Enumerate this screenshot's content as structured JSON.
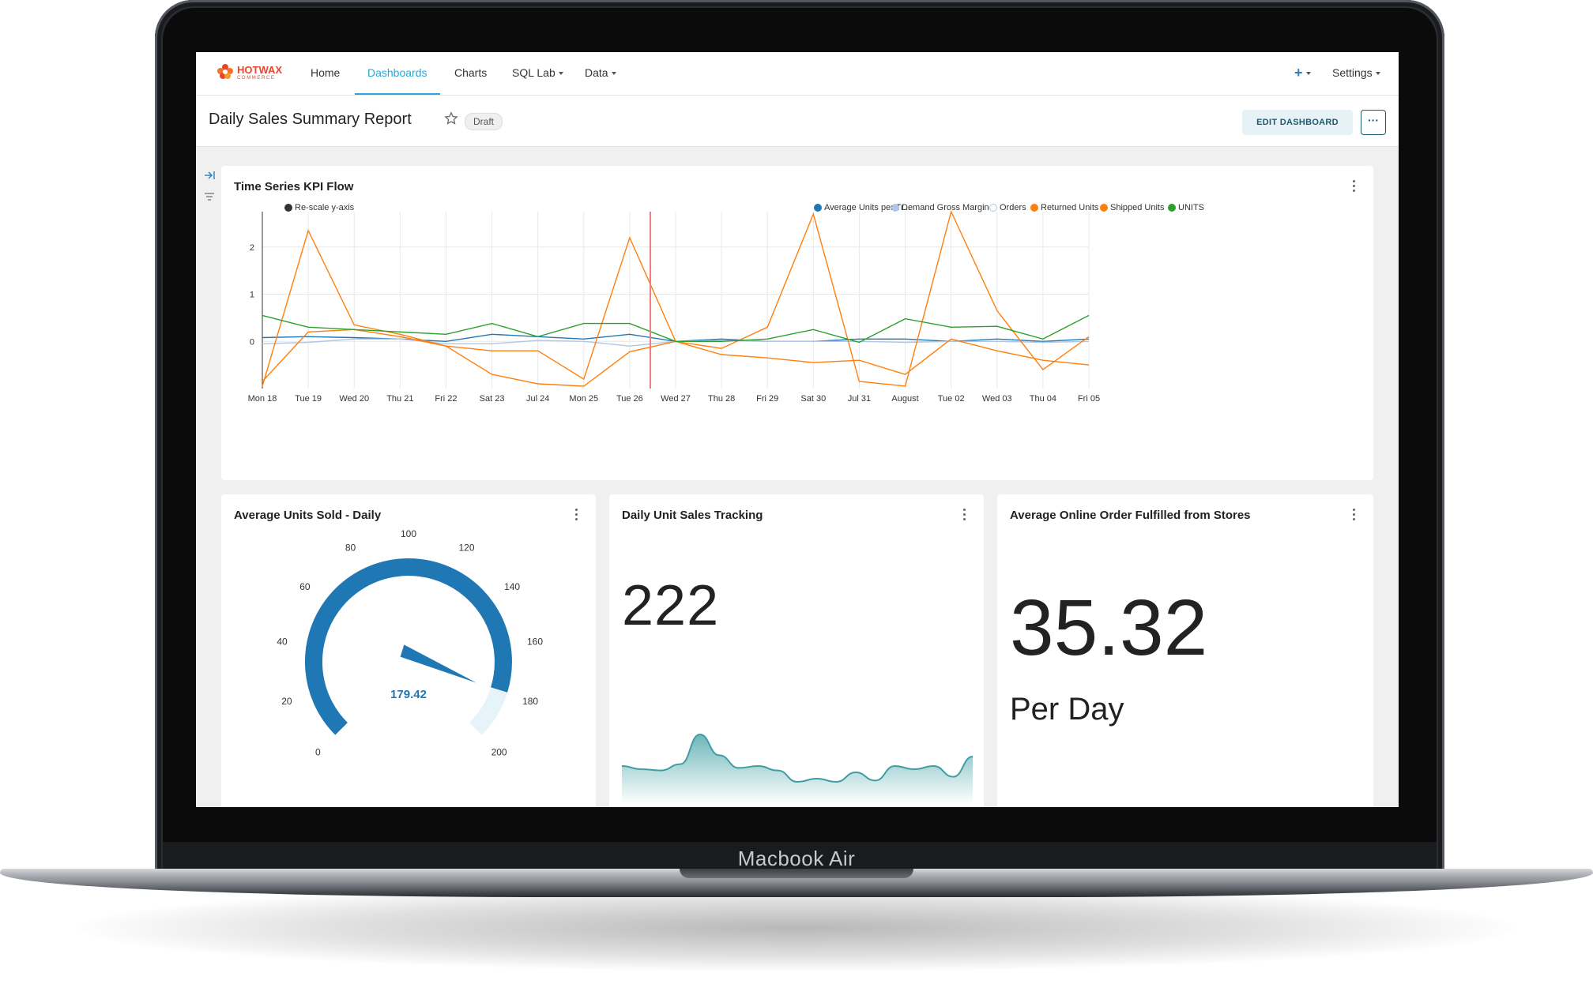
{
  "device": {
    "label": "Macbook Air"
  },
  "app": {
    "logo_text": "HOTWAX",
    "logo_sub": "COMMERCE",
    "nav": [
      {
        "label": "Home"
      },
      {
        "label": "Dashboards"
      },
      {
        "label": "Charts"
      },
      {
        "label": "SQL Lab"
      },
      {
        "label": "Data"
      }
    ],
    "right_nav": {
      "plus": "+",
      "settings": "Settings"
    }
  },
  "dashboard": {
    "title": "Daily Sales Summary Report",
    "status": "Draft",
    "edit_label": "EDIT DASHBOARD",
    "more_label": "···"
  },
  "cards": {
    "timeseries": {
      "title": "Time Series KPI Flow"
    },
    "gauge": {
      "title": "Average Units Sold - Daily"
    },
    "tracking": {
      "title": "Daily Unit Sales Tracking",
      "value": "222"
    },
    "online": {
      "title": "Average Online Order Fulfilled from Stores",
      "value": "35.32",
      "unit": "Per Day"
    }
  },
  "chart_data": [
    {
      "type": "line",
      "title": "Time Series KPI Flow",
      "rescale_label": "Re-scale y-axis",
      "categories": [
        "Mon 18",
        "Tue 19",
        "Wed 20",
        "Thu 21",
        "Fri 22",
        "Sat 23",
        "Jul 24",
        "Mon 25",
        "Tue 26",
        "Wed 27",
        "Thu 28",
        "Fri 29",
        "Sat 30",
        "Jul 31",
        "August",
        "Tue 02",
        "Wed 03",
        "Thu 04",
        "Fri 05"
      ],
      "yticks": [
        "0",
        "1",
        "2"
      ],
      "ylim": [
        -1,
        2.75
      ],
      "marker_index": 8.45,
      "legend_placement": "top-right",
      "series": [
        {
          "name": "Average Units per Tr...",
          "color": "#1f77b4",
          "values": [
            0.08,
            0.1,
            0.08,
            0.05,
            0.0,
            0.15,
            0.1,
            0.05,
            0.15,
            0.0,
            0.05,
            0.0,
            0.0,
            0.05,
            0.05,
            0.0,
            0.05,
            0.0,
            0.05
          ]
        },
        {
          "name": "Demand Gross Margin",
          "color": "#aec7e8",
          "values": [
            -0.05,
            -0.02,
            0.05,
            0.05,
            -0.05,
            -0.05,
            0.02,
            0.0,
            -0.1,
            0.0,
            0.02,
            0.0,
            0.0,
            0.0,
            -0.02,
            0.0,
            0.0,
            -0.02,
            0.0
          ]
        },
        {
          "name": "Orders",
          "color": "#aec7e8",
          "hollow": true,
          "values": [
            0,
            0,
            0,
            0,
            0,
            0,
            0,
            0,
            0,
            0,
            0,
            0,
            0,
            0,
            0,
            0,
            0,
            0,
            0
          ]
        },
        {
          "name": "Returned Units",
          "color": "#ff7f0e",
          "values": [
            -0.95,
            2.35,
            0.35,
            0.15,
            -0.1,
            -0.2,
            -0.2,
            -0.8,
            2.2,
            0.0,
            -0.15,
            0.3,
            2.7,
            -0.85,
            -0.95,
            2.75,
            0.65,
            -0.6,
            0.1
          ]
        },
        {
          "name": "Shipped Units",
          "color": "#ff7f0e",
          "values": [
            -0.85,
            0.2,
            0.25,
            0.1,
            -0.1,
            -0.7,
            -0.9,
            -0.95,
            -0.22,
            0.0,
            -0.28,
            -0.35,
            -0.45,
            -0.4,
            -0.7,
            0.05,
            -0.2,
            -0.4,
            -0.5
          ]
        },
        {
          "name": "UNITS",
          "color": "#2ca02c",
          "values": [
            0.55,
            0.3,
            0.25,
            0.2,
            0.15,
            0.38,
            0.1,
            0.38,
            0.38,
            0.0,
            0.0,
            0.05,
            0.25,
            -0.02,
            0.48,
            0.3,
            0.32,
            0.05,
            0.55
          ]
        }
      ]
    },
    {
      "type": "gauge",
      "title": "Average Units Sold - Daily",
      "min": 0,
      "max": 200,
      "ticks": [
        "0",
        "20",
        "40",
        "60",
        "80",
        "100",
        "120",
        "140",
        "160",
        "180",
        "200"
      ],
      "value": 179.42,
      "value_label": "179.42",
      "color": "#1f77b4"
    },
    {
      "type": "area",
      "title": "Daily Unit Sales Tracking",
      "values": [
        0.45,
        0.4,
        0.38,
        0.48,
        0.95,
        0.62,
        0.42,
        0.45,
        0.38,
        0.2,
        0.25,
        0.2,
        0.35,
        0.22,
        0.45,
        0.4,
        0.45,
        0.28,
        0.6
      ],
      "color": "#3d9ea3"
    }
  ]
}
